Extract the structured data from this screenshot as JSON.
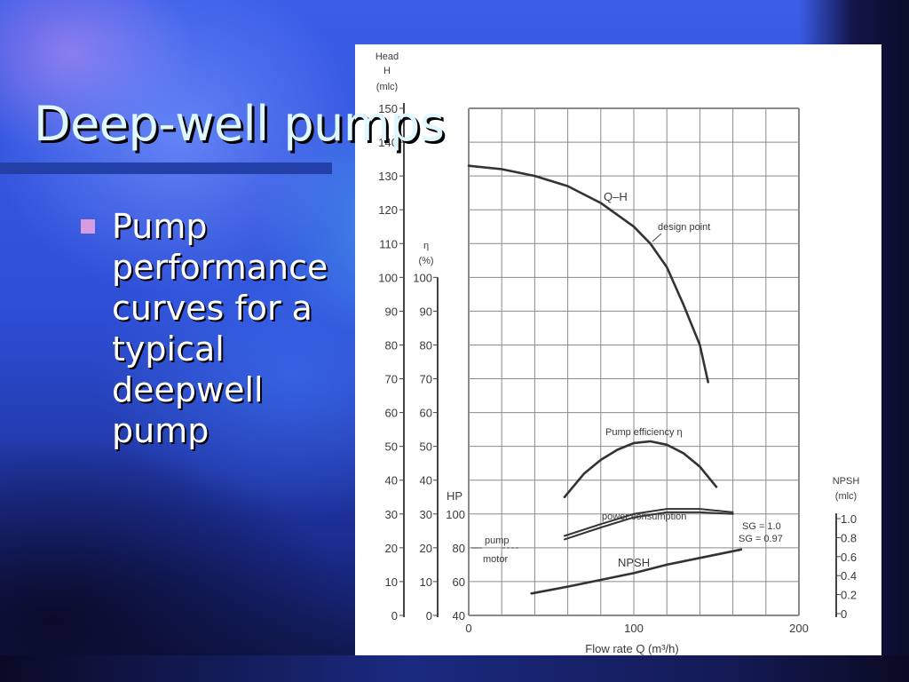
{
  "slide": {
    "title": "Deep-well pumps",
    "bullets": [
      {
        "lines": [
          "Pump",
          "performance",
          "curves for a",
          "typical",
          "deepwell",
          "pump"
        ]
      }
    ],
    "colors": {
      "title_text": "#dff8ff",
      "title_rule": "#233fa8",
      "bullet_marker": "#d79be0",
      "panel_bg": "#ffffff"
    }
  },
  "chart_labels": {
    "head_axis_title": [
      "Head",
      "H",
      "(mlc)"
    ],
    "eta_axis_title": [
      "η",
      "(%)"
    ],
    "hp_axis_title": "HP",
    "npsh_axis_title": [
      "NPSH",
      "(mlc)"
    ],
    "x_axis_title": "Flow rate Q (m³/h)",
    "qh_label": "Q–H",
    "design_point_label": "design point",
    "efficiency_label": "Pump efficiency η",
    "power_label": "power consumption",
    "sg1_label": "SG = 1.0",
    "sg2_label": "SG = 0.97",
    "npsh_label": "NPSH",
    "pump_motor_label": [
      "pump",
      "motor"
    ]
  },
  "chart_data": {
    "type": "line",
    "title": "Pump performance curves for a typical deepwell pump",
    "xlabel": "Flow rate Q (m³/h)",
    "ylabel": "Head H (mlc)",
    "xlim": [
      0,
      200
    ],
    "x_ticks": [
      0,
      100,
      200
    ],
    "axes": {
      "head_H_mlc": {
        "range": [
          0,
          150
        ],
        "ticks": [
          0,
          10,
          20,
          30,
          40,
          50,
          60,
          70,
          80,
          90,
          100,
          110,
          120,
          130,
          140,
          150
        ]
      },
      "efficiency_pct": {
        "range": [
          0,
          100
        ],
        "ticks": [
          0,
          10,
          20,
          30,
          40,
          50,
          60,
          70,
          80,
          90,
          100
        ]
      },
      "power_HP": {
        "range": [
          40,
          100
        ],
        "ticks": [
          40,
          60,
          80,
          100
        ]
      },
      "npsh_mlc": {
        "range": [
          0,
          1.0
        ],
        "ticks": [
          0,
          0.2,
          0.4,
          0.6,
          0.8,
          1.0
        ]
      }
    },
    "grid": true,
    "series": [
      {
        "name": "Q–H",
        "axis": "head_H_mlc",
        "x": [
          0,
          20,
          40,
          60,
          80,
          100,
          110,
          120,
          130,
          140,
          145
        ],
        "y": [
          133,
          132,
          130,
          127,
          122,
          115,
          110,
          103,
          92,
          80,
          69
        ]
      },
      {
        "name": "Pump efficiency η",
        "axis": "efficiency_pct",
        "x": [
          58,
          70,
          80,
          90,
          100,
          110,
          120,
          130,
          140,
          150
        ],
        "y": [
          35,
          42,
          46,
          49,
          51,
          51.5,
          50.5,
          48,
          44,
          38
        ]
      },
      {
        "name": "Power consumption SG = 1.0",
        "axis": "power_HP",
        "x": [
          58,
          80,
          100,
          120,
          140,
          160
        ],
        "y": [
          87,
          94,
          100,
          103,
          103,
          101
        ]
      },
      {
        "name": "Power consumption SG = 0.97",
        "axis": "power_HP",
        "x": [
          58,
          80,
          100,
          120,
          140,
          160
        ],
        "y": [
          85,
          92,
          98,
          101,
          101,
          100
        ]
      },
      {
        "name": "NPSH",
        "axis": "head_H_mlc_scaled",
        "x": [
          38,
          60,
          80,
          100,
          120,
          140,
          165
        ],
        "y": [
          6.5,
          8.5,
          10.5,
          12.5,
          15,
          17,
          19.5
        ]
      }
    ],
    "annotations": [
      {
        "text": "design point",
        "x": 110,
        "y": 110
      },
      {
        "text": "pump motor",
        "hp": 80
      }
    ]
  }
}
